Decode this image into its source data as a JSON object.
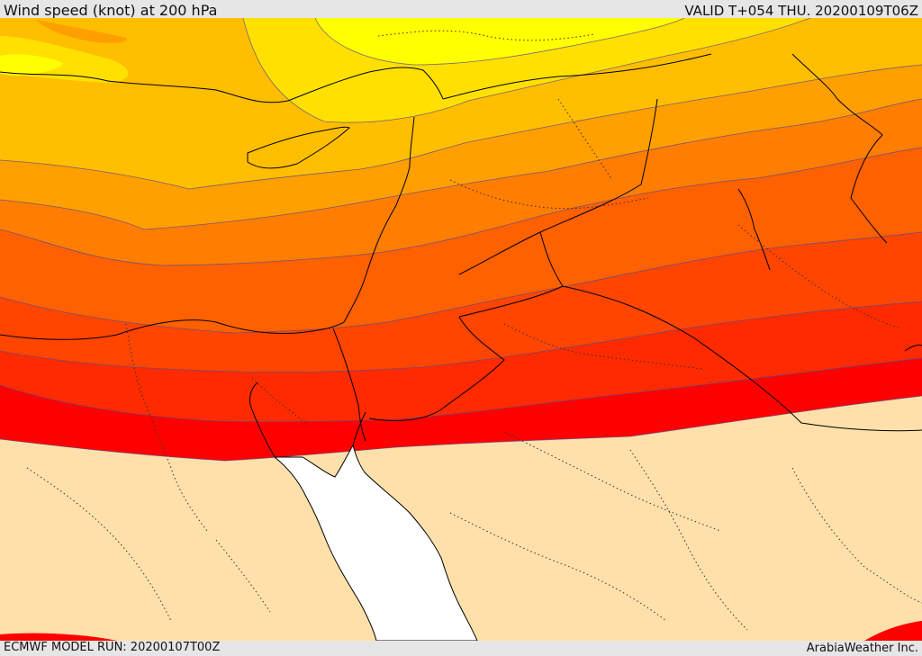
{
  "header": {
    "title": "Wind speed (knot) at 200 hPa",
    "valid_time": "VALID T+054 THU. 20200109T06Z"
  },
  "footer": {
    "model_run": "ECMWF MODEL RUN: 20200107T00Z",
    "credit": "ArabiaWeather Inc."
  },
  "map": {
    "colors": {
      "band_1": "#ffff00",
      "band_2": "#ffe000",
      "band_3": "#ffbe00",
      "band_4": "#ff9f00",
      "band_5": "#ff7d00",
      "band_6": "#ff6000",
      "band_7": "#ff4500",
      "band_8": "#ff2a00",
      "band_9": "#ff0000",
      "low_wind_land": "#ffe0aa",
      "sea": "#ffffff",
      "coastline": "#000000"
    }
  }
}
